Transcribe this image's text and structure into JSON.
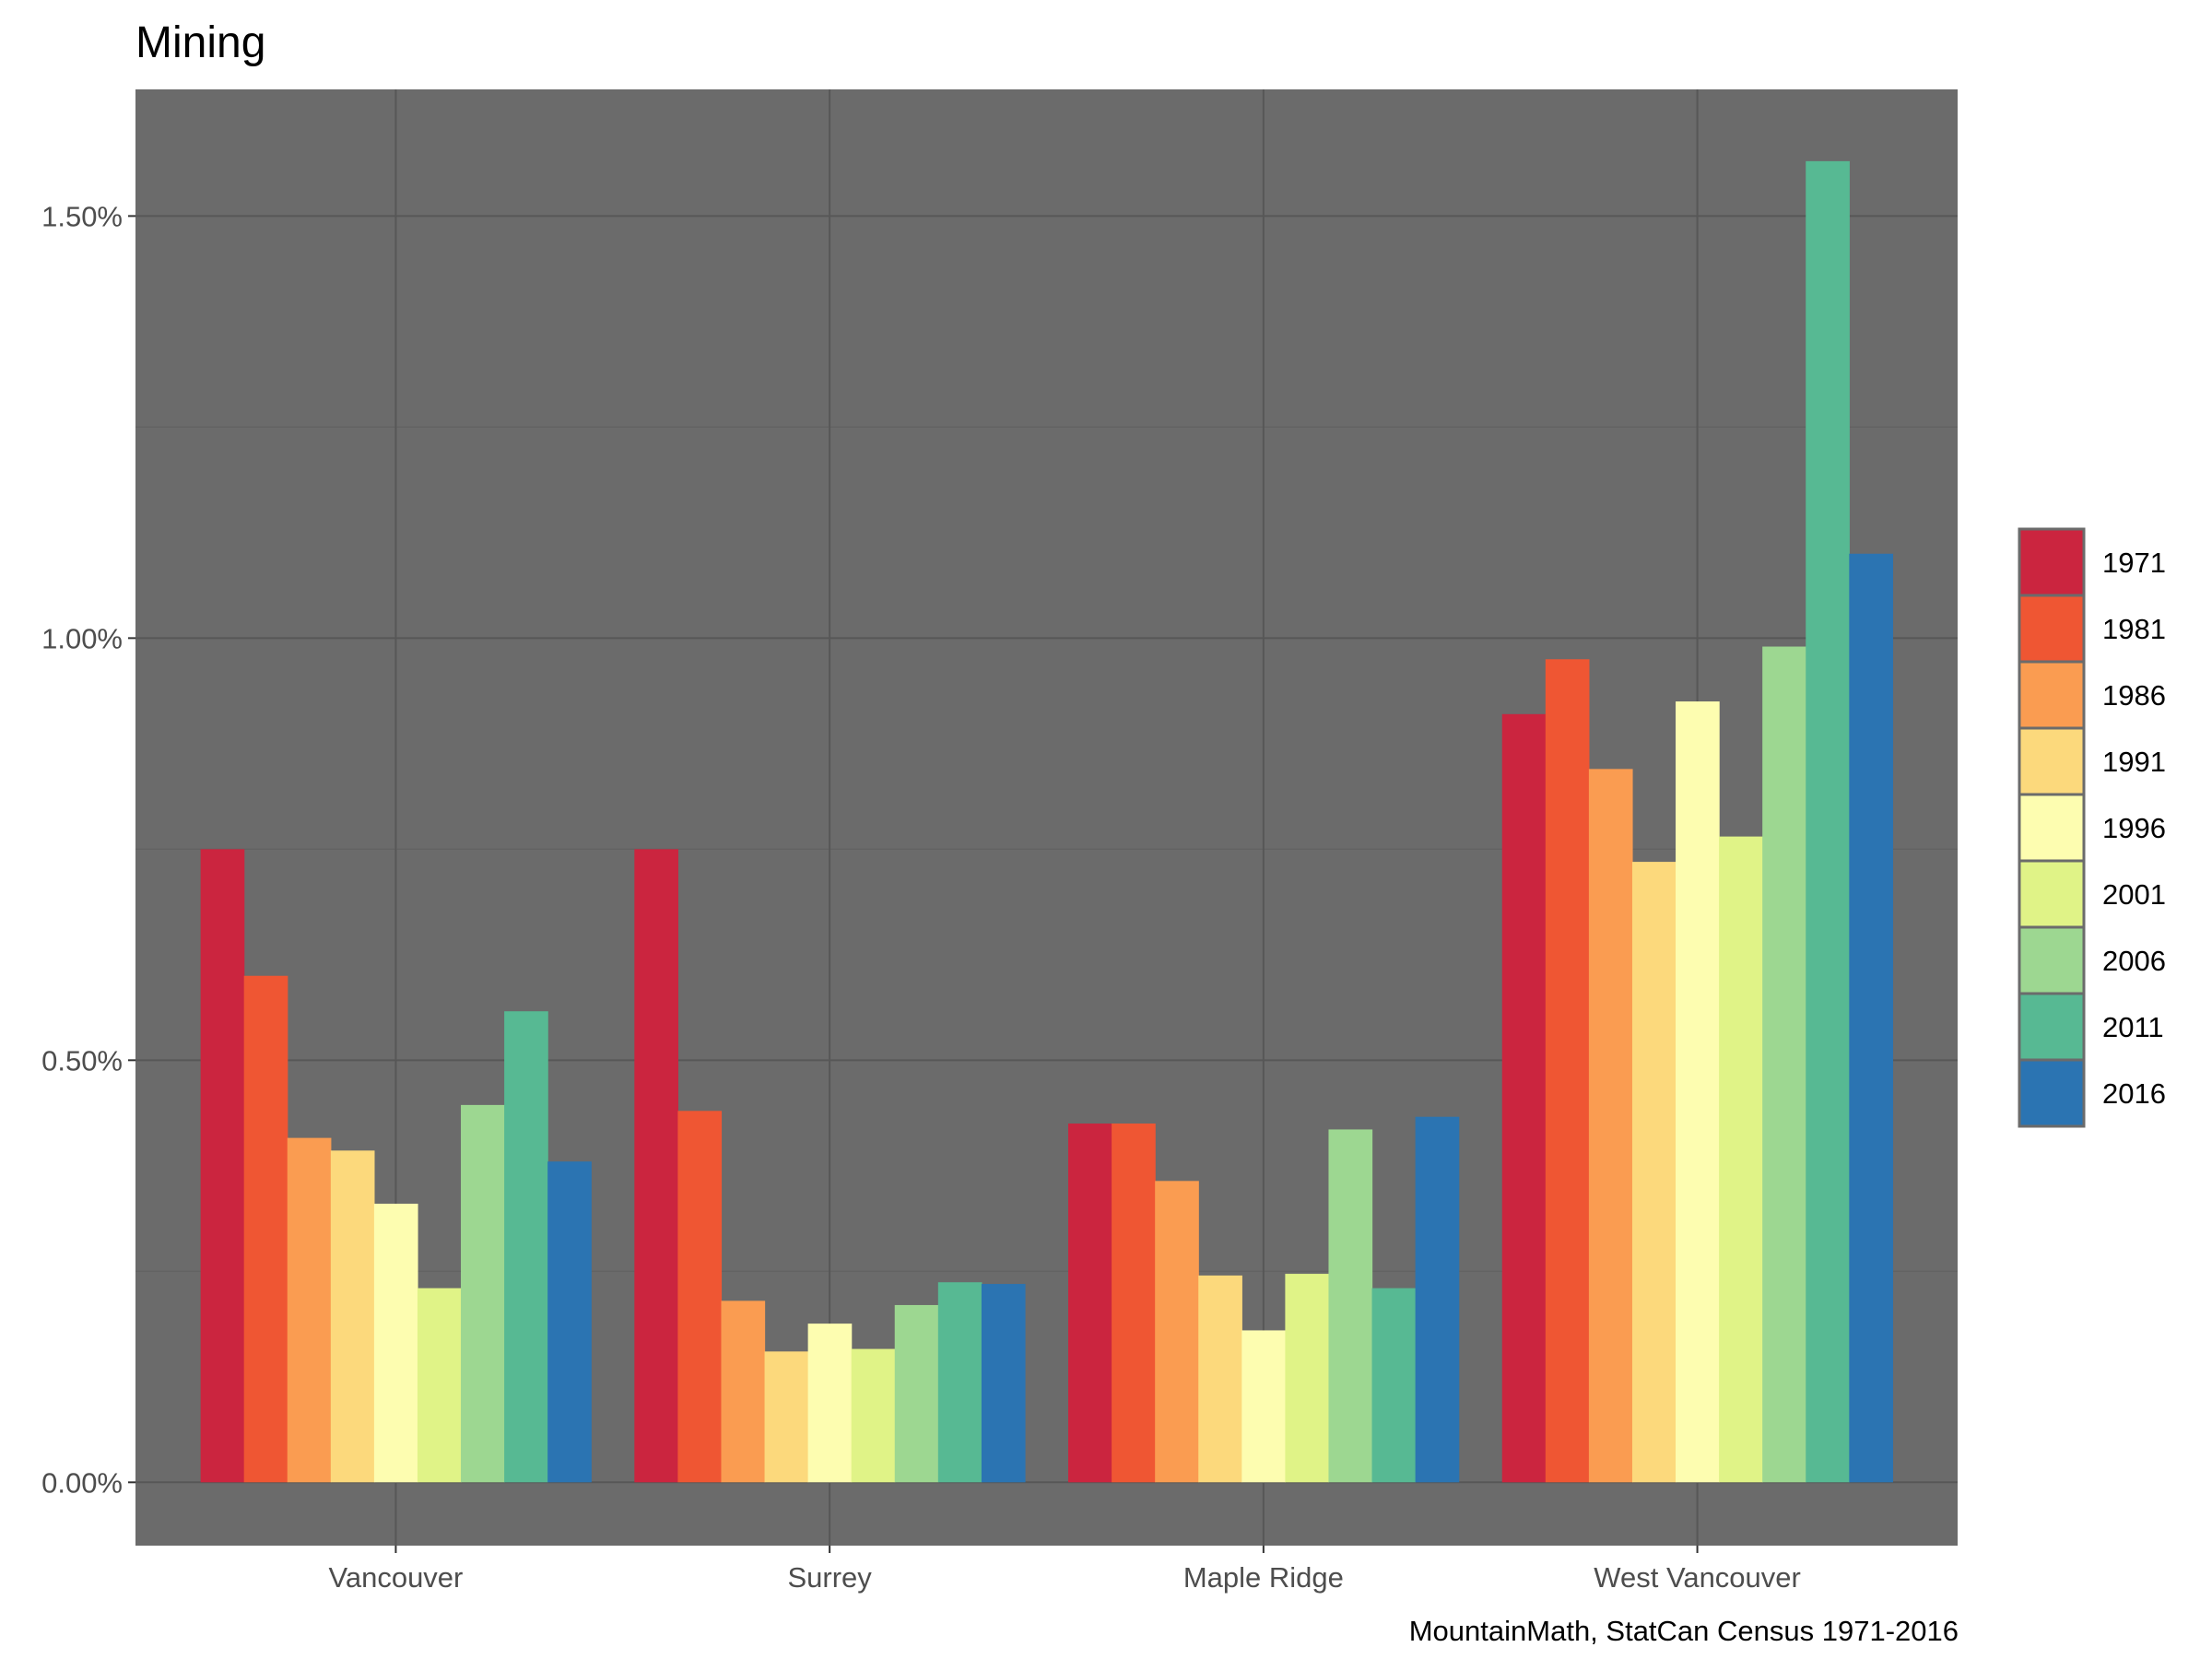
{
  "chart_data": {
    "type": "bar",
    "title": "Mining",
    "caption": "MountainMath, StatCan Census 1971-2016",
    "xlabel": "",
    "ylabel": "",
    "categories": [
      "Vancouver",
      "Surrey",
      "Maple Ridge",
      "West Vancouver"
    ],
    "ylim": [
      -0.075,
      1.65
    ],
    "yticks": [
      0.0,
      0.5,
      1.0,
      1.5
    ],
    "ytick_labels": [
      "0.00%",
      "0.50%",
      "1.00%",
      "1.50%"
    ],
    "grid": true,
    "legend_position": "right",
    "series": [
      {
        "name": "1971",
        "color": "#cb253f",
        "values": [
          0.75,
          0.75,
          0.425,
          0.91
        ]
      },
      {
        "name": "1981",
        "color": "#ef5633",
        "values": [
          0.6,
          0.44,
          0.425,
          0.975
        ]
      },
      {
        "name": "1986",
        "color": "#fa9c51",
        "values": [
          0.408,
          0.215,
          0.357,
          0.845
        ]
      },
      {
        "name": "1991",
        "color": "#fcd97c",
        "values": [
          0.393,
          0.155,
          0.245,
          0.735
        ]
      },
      {
        "name": "1996",
        "color": "#fdfdb0",
        "values": [
          0.33,
          0.188,
          0.18,
          0.925
        ]
      },
      {
        "name": "2001",
        "color": "#e0f387",
        "values": [
          0.23,
          0.158,
          0.247,
          0.765
        ]
      },
      {
        "name": "2006",
        "color": "#9dd791",
        "values": [
          0.447,
          0.21,
          0.418,
          0.99
        ]
      },
      {
        "name": "2011",
        "color": "#57b993",
        "values": [
          0.558,
          0.237,
          0.23,
          1.565
        ]
      },
      {
        "name": "2016",
        "color": "#2b74b2",
        "values": [
          0.38,
          0.235,
          0.433,
          1.1
        ]
      }
    ]
  },
  "colors": {
    "panel": "#6b6b6b",
    "grid_major": "#575757",
    "grid_minor": "#626262"
  }
}
